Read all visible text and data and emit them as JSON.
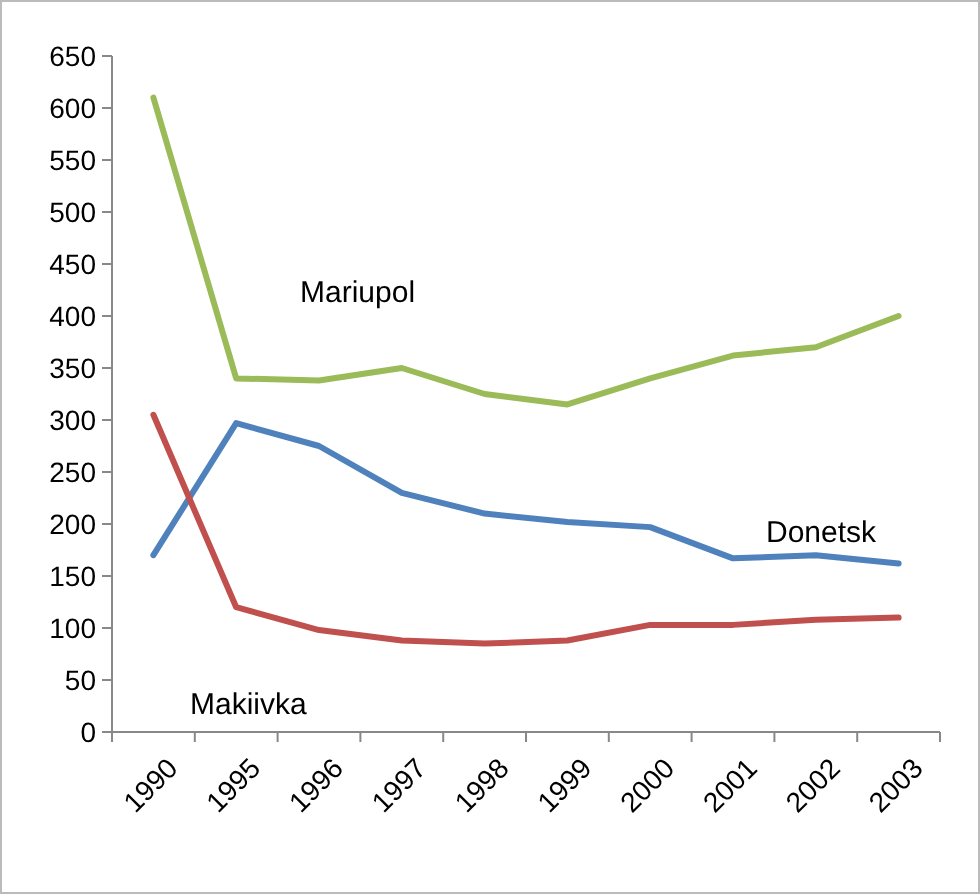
{
  "chart_data": {
    "type": "line",
    "categories": [
      "1990",
      "1995",
      "1996",
      "1997",
      "1998",
      "1999",
      "2000",
      "2001",
      "2002",
      "2003"
    ],
    "series": [
      {
        "name": "Mariupol",
        "color": "#9bbb59",
        "values": [
          610,
          340,
          338,
          350,
          325,
          315,
          340,
          362,
          370,
          400
        ]
      },
      {
        "name": "Donetsk",
        "color": "#4f81bd",
        "values": [
          170,
          297,
          275,
          230,
          210,
          202,
          197,
          167,
          170,
          162
        ]
      },
      {
        "name": "Makiivka",
        "color": "#c0504d",
        "values": [
          305,
          120,
          98,
          88,
          85,
          88,
          103,
          103,
          108,
          110
        ]
      }
    ],
    "ylim": [
      0,
      650
    ],
    "yticks": [
      0,
      50,
      100,
      150,
      200,
      250,
      300,
      350,
      400,
      450,
      500,
      550,
      600,
      650
    ],
    "grid": false,
    "marker": "none",
    "line_style": "solid"
  }
}
